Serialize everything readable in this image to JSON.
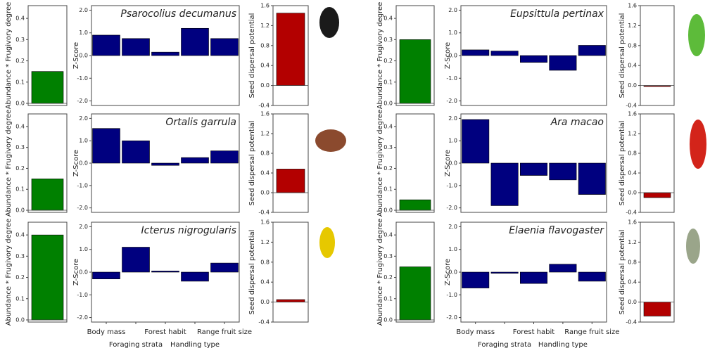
{
  "chart_data": [
    {
      "type": "bar",
      "ylabel": "Abundance * Frugivory degree",
      "values": [
        0.15
      ],
      "color": "#008000",
      "ylim": [
        -0.01,
        0.46
      ],
      "yticks": [
        {
          "value": 0,
          "label": "0.0"
        },
        0.1,
        0.2,
        0.3,
        0.4
      ]
    },
    {
      "type": "bar",
      "title": "Psarocolius decumanus",
      "ylabel": "Z-Score",
      "categories": [
        null,
        null,
        null,
        null,
        null
      ],
      "values": [
        0.9,
        0.75,
        0.15,
        1.2,
        0.75
      ],
      "color": "#00007f",
      "ylim": [
        -2.2,
        2.2
      ],
      "yticks": [
        {
          "value": -2,
          "label": "-2.0"
        },
        {
          "value": -1,
          "label": "-1.0"
        },
        {
          "value": 0,
          "label": "0.0"
        },
        {
          "value": 1,
          "label": "1.0"
        },
        {
          "value": 2,
          "label": "2.0"
        }
      ]
    },
    {
      "type": "bar",
      "ylabel": "Seed dispersal potential",
      "values": [
        1.45
      ],
      "color": "#b30000",
      "ylim": [
        -0.4,
        1.6
      ],
      "yticks": [
        -0.4,
        {
          "value": 0,
          "label": "0.0"
        },
        0.4,
        0.8,
        1.2,
        1.6
      ]
    },
    {
      "type": "bar",
      "ylabel": "Abundance * Frugivory degree",
      "values": [
        0.15
      ],
      "color": "#008000",
      "ylim": [
        -0.01,
        0.46
      ],
      "yticks": [
        {
          "value": 0,
          "label": "0.0"
        },
        0.1,
        0.2,
        0.3,
        0.4
      ]
    },
    {
      "type": "bar",
      "title": "Ortalis garrula",
      "ylabel": "Z-Score",
      "categories": [
        null,
        null,
        null,
        null,
        null
      ],
      "values": [
        1.55,
        1.0,
        -0.1,
        0.25,
        0.55
      ],
      "color": "#00007f",
      "ylim": [
        -2.2,
        2.2
      ],
      "yticks": [
        {
          "value": -2,
          "label": "-2.0"
        },
        {
          "value": -1,
          "label": "-1.0"
        },
        {
          "value": 0,
          "label": "0.0"
        },
        {
          "value": 1,
          "label": "1.0"
        },
        {
          "value": 2,
          "label": "2.0"
        }
      ]
    },
    {
      "type": "bar",
      "ylabel": "Seed dispersal potential",
      "values": [
        0.48
      ],
      "color": "#b30000",
      "ylim": [
        -0.4,
        1.6
      ],
      "yticks": [
        -0.4,
        {
          "value": 0,
          "label": "0.0"
        },
        0.4,
        0.8,
        1.2,
        1.6
      ]
    },
    {
      "type": "bar",
      "ylabel": "Abundance * Frugivory degree",
      "values": [
        0.4
      ],
      "color": "#008000",
      "ylim": [
        -0.01,
        0.46
      ],
      "yticks": [
        {
          "value": 0,
          "label": "0.0"
        },
        0.1,
        0.2,
        0.3,
        0.4
      ]
    },
    {
      "type": "bar",
      "title": "Icterus nigrogularis",
      "ylabel": "Z-Score",
      "categories": [
        "Body mass",
        "Foraging strata",
        "Forest habit",
        "Handling type",
        "Range fruit size"
      ],
      "values": [
        -0.3,
        1.1,
        0.05,
        -0.4,
        0.4
      ],
      "color": "#00007f",
      "ylim": [
        -2.2,
        2.2
      ],
      "yticks": [
        {
          "value": -2,
          "label": "-2.0"
        },
        {
          "value": -1,
          "label": "-1.0"
        },
        {
          "value": 0,
          "label": "0.0"
        },
        {
          "value": 1,
          "label": "1.0"
        },
        {
          "value": 2,
          "label": "2.0"
        }
      ]
    },
    {
      "type": "bar",
      "ylabel": "Seed dispersal potential",
      "values": [
        0.05
      ],
      "color": "#b30000",
      "ylim": [
        -0.4,
        1.6
      ],
      "yticks": [
        -0.4,
        {
          "value": 0,
          "label": "0.0"
        },
        0.4,
        0.8,
        1.2,
        1.6
      ]
    },
    {
      "type": "bar",
      "ylabel": "Abundance * Frugivory degree",
      "values": [
        0.3
      ],
      "color": "#008000",
      "ylim": [
        -0.01,
        0.46
      ],
      "yticks": [
        {
          "value": 0,
          "label": "0.0"
        },
        0.1,
        0.2,
        0.3,
        0.4
      ]
    },
    {
      "type": "bar",
      "title": "Eupsittula pertinax",
      "ylabel": "Z-Score",
      "categories": [
        null,
        null,
        null,
        null,
        null
      ],
      "values": [
        0.25,
        0.2,
        -0.3,
        -0.65,
        0.45
      ],
      "color": "#00007f",
      "ylim": [
        -2.2,
        2.2
      ],
      "yticks": [
        {
          "value": -2,
          "label": "-2.0"
        },
        {
          "value": -1,
          "label": "-1.0"
        },
        {
          "value": 0,
          "label": "0.0"
        },
        {
          "value": 1,
          "label": "1.0"
        },
        {
          "value": 2,
          "label": "2.0"
        }
      ]
    },
    {
      "type": "bar",
      "ylabel": "Seed dispersal potential",
      "values": [
        -0.02
      ],
      "color": "#b30000",
      "ylim": [
        -0.4,
        1.6
      ],
      "yticks": [
        -0.4,
        {
          "value": 0,
          "label": "0.0"
        },
        0.4,
        0.8,
        1.2,
        1.6
      ]
    },
    {
      "type": "bar",
      "ylabel": "Abundance * Frugivory degree",
      "values": [
        0.05
      ],
      "color": "#008000",
      "ylim": [
        -0.01,
        0.46
      ],
      "yticks": [
        {
          "value": 0,
          "label": "0.0"
        },
        0.1,
        0.2,
        0.3,
        0.4
      ]
    },
    {
      "type": "bar",
      "title": "Ara macao",
      "ylabel": "Z-Score",
      "categories": [
        null,
        null,
        null,
        null,
        null
      ],
      "values": [
        1.95,
        -1.9,
        -0.55,
        -0.75,
        -1.4
      ],
      "color": "#00007f",
      "ylim": [
        -2.2,
        2.2
      ],
      "yticks": [
        {
          "value": -2,
          "label": "-2.0"
        },
        {
          "value": -1,
          "label": "-1.0"
        },
        {
          "value": 0,
          "label": "0.0"
        },
        {
          "value": 1,
          "label": "1.0"
        },
        {
          "value": 2,
          "label": "2.0"
        }
      ]
    },
    {
      "type": "bar",
      "ylabel": "Seed dispersal potential",
      "values": [
        -0.1
      ],
      "color": "#b30000",
      "ylim": [
        -0.4,
        1.6
      ],
      "yticks": [
        -0.4,
        {
          "value": 0,
          "label": "0.0"
        },
        0.4,
        0.8,
        1.2,
        1.6
      ]
    },
    {
      "type": "bar",
      "ylabel": "Abundance * Frugivory degree",
      "values": [
        0.25
      ],
      "color": "#008000",
      "ylim": [
        -0.01,
        0.46
      ],
      "yticks": [
        {
          "value": 0,
          "label": "0.0"
        },
        0.1,
        0.2,
        0.3,
        0.4
      ]
    },
    {
      "type": "bar",
      "title": "Elaenia flavogaster",
      "ylabel": "Z-Score",
      "categories": [
        "Body mass",
        "Foraging strata",
        "Forest habit",
        "Handling type",
        "Range fruit size"
      ],
      "values": [
        -0.7,
        -0.05,
        -0.5,
        0.35,
        -0.4
      ],
      "color": "#00007f",
      "ylim": [
        -2.2,
        2.2
      ],
      "yticks": [
        {
          "value": -2,
          "label": "-2.0"
        },
        {
          "value": -1,
          "label": "-1.0"
        },
        {
          "value": 0,
          "label": "0.0"
        },
        {
          "value": 1,
          "label": "1.0"
        },
        {
          "value": 2,
          "label": "2.0"
        }
      ]
    },
    {
      "type": "bar",
      "ylabel": "Seed dispersal potential",
      "values": [
        -0.28
      ],
      "color": "#b30000",
      "ylim": [
        -0.4,
        1.6
      ],
      "yticks": [
        -0.4,
        {
          "value": 0,
          "label": "0.0"
        },
        0.4,
        0.8,
        1.2,
        1.6
      ]
    }
  ]
}
